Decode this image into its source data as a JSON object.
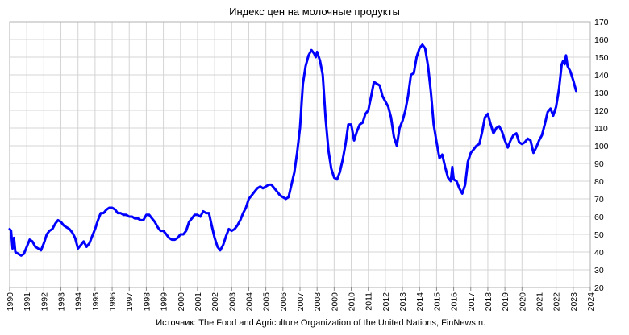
{
  "chart_data": {
    "type": "line",
    "title": "Индекс цен на молочные продукты",
    "source": "Источник: The Food and Agriculture Organization of the United Nations, FinNews.ru",
    "xlabel": "",
    "ylabel": "",
    "xlim": [
      1990,
      2024
    ],
    "ylim": [
      20,
      170
    ],
    "y_axis_side": "right",
    "x_ticks": [
      "1990",
      "1991",
      "1992",
      "1993",
      "1994",
      "1995",
      "1996",
      "1997",
      "1998",
      "1999",
      "2000",
      "2001",
      "2002",
      "2003",
      "2004",
      "2005",
      "2006",
      "2007",
      "2008",
      "2009",
      "2010",
      "2011",
      "2012",
      "2013",
      "2014",
      "2015",
      "2016",
      "2017",
      "2018",
      "2019",
      "2020",
      "2021",
      "2022",
      "2023",
      "2024"
    ],
    "y_ticks": [
      "20",
      "30",
      "40",
      "50",
      "60",
      "70",
      "80",
      "90",
      "100",
      "110",
      "120",
      "130",
      "140",
      "150",
      "160",
      "170"
    ],
    "grid": {
      "horizontal": true,
      "vertical": true
    },
    "legend": "none",
    "series": [
      {
        "color": "#0000ff",
        "points": [
          [
            1990.0,
            53
          ],
          [
            1990.08,
            52
          ],
          [
            1990.17,
            42
          ],
          [
            1990.25,
            48
          ],
          [
            1990.33,
            40
          ],
          [
            1990.5,
            39
          ],
          [
            1990.67,
            38
          ],
          [
            1990.83,
            39
          ],
          [
            1991.0,
            43
          ],
          [
            1991.17,
            47
          ],
          [
            1991.33,
            46
          ],
          [
            1991.5,
            43
          ],
          [
            1991.67,
            42
          ],
          [
            1991.83,
            41
          ],
          [
            1992.0,
            45
          ],
          [
            1992.17,
            50
          ],
          [
            1992.33,
            52
          ],
          [
            1992.5,
            53
          ],
          [
            1992.67,
            56
          ],
          [
            1992.83,
            58
          ],
          [
            1993.0,
            57
          ],
          [
            1993.17,
            55
          ],
          [
            1993.33,
            54
          ],
          [
            1993.5,
            53
          ],
          [
            1993.67,
            51
          ],
          [
            1993.83,
            48
          ],
          [
            1994.0,
            42
          ],
          [
            1994.17,
            44
          ],
          [
            1994.33,
            46
          ],
          [
            1994.5,
            43
          ],
          [
            1994.67,
            45
          ],
          [
            1994.83,
            49
          ],
          [
            1995.0,
            53
          ],
          [
            1995.17,
            58
          ],
          [
            1995.33,
            62
          ],
          [
            1995.5,
            62
          ],
          [
            1995.67,
            64
          ],
          [
            1995.83,
            65
          ],
          [
            1996.0,
            65
          ],
          [
            1996.17,
            64
          ],
          [
            1996.33,
            62
          ],
          [
            1996.5,
            62
          ],
          [
            1996.67,
            61
          ],
          [
            1996.83,
            61
          ],
          [
            1997.0,
            60
          ],
          [
            1997.17,
            60
          ],
          [
            1997.33,
            59
          ],
          [
            1997.5,
            59
          ],
          [
            1997.67,
            58
          ],
          [
            1997.83,
            58
          ],
          [
            1998.0,
            61
          ],
          [
            1998.17,
            61
          ],
          [
            1998.33,
            59
          ],
          [
            1998.5,
            57
          ],
          [
            1998.67,
            54
          ],
          [
            1998.83,
            52
          ],
          [
            1999.0,
            52
          ],
          [
            1999.17,
            50
          ],
          [
            1999.33,
            48
          ],
          [
            1999.5,
            47
          ],
          [
            1999.67,
            47
          ],
          [
            1999.83,
            48
          ],
          [
            2000.0,
            50
          ],
          [
            2000.17,
            50
          ],
          [
            2000.33,
            52
          ],
          [
            2000.5,
            57
          ],
          [
            2000.67,
            59
          ],
          [
            2000.83,
            61
          ],
          [
            2001.0,
            61
          ],
          [
            2001.17,
            60
          ],
          [
            2001.33,
            63
          ],
          [
            2001.5,
            62
          ],
          [
            2001.67,
            62
          ],
          [
            2001.83,
            55
          ],
          [
            2002.0,
            48
          ],
          [
            2002.17,
            43
          ],
          [
            2002.33,
            41
          ],
          [
            2002.5,
            44
          ],
          [
            2002.67,
            49
          ],
          [
            2002.83,
            53
          ],
          [
            2003.0,
            52
          ],
          [
            2003.17,
            53
          ],
          [
            2003.33,
            55
          ],
          [
            2003.5,
            58
          ],
          [
            2003.67,
            62
          ],
          [
            2003.83,
            65
          ],
          [
            2004.0,
            70
          ],
          [
            2004.17,
            72
          ],
          [
            2004.33,
            74
          ],
          [
            2004.5,
            76
          ],
          [
            2004.67,
            77
          ],
          [
            2004.83,
            76
          ],
          [
            2005.0,
            77
          ],
          [
            2005.17,
            78
          ],
          [
            2005.33,
            78
          ],
          [
            2005.5,
            76
          ],
          [
            2005.67,
            74
          ],
          [
            2005.83,
            72
          ],
          [
            2006.0,
            71
          ],
          [
            2006.17,
            70
          ],
          [
            2006.33,
            71
          ],
          [
            2006.5,
            78
          ],
          [
            2006.67,
            85
          ],
          [
            2006.83,
            96
          ],
          [
            2007.0,
            110
          ],
          [
            2007.17,
            135
          ],
          [
            2007.33,
            145
          ],
          [
            2007.5,
            151
          ],
          [
            2007.67,
            154
          ],
          [
            2007.83,
            152
          ],
          [
            2007.92,
            150
          ],
          [
            2008.0,
            153
          ],
          [
            2008.17,
            148
          ],
          [
            2008.33,
            140
          ],
          [
            2008.5,
            115
          ],
          [
            2008.67,
            97
          ],
          [
            2008.83,
            87
          ],
          [
            2009.0,
            82
          ],
          [
            2009.17,
            81
          ],
          [
            2009.33,
            85
          ],
          [
            2009.5,
            92
          ],
          [
            2009.67,
            101
          ],
          [
            2009.83,
            112
          ],
          [
            2010.0,
            112
          ],
          [
            2010.17,
            103
          ],
          [
            2010.33,
            108
          ],
          [
            2010.5,
            112
          ],
          [
            2010.67,
            113
          ],
          [
            2010.83,
            118
          ],
          [
            2011.0,
            120
          ],
          [
            2011.17,
            128
          ],
          [
            2011.33,
            136
          ],
          [
            2011.5,
            135
          ],
          [
            2011.67,
            134
          ],
          [
            2011.83,
            128
          ],
          [
            2012.0,
            125
          ],
          [
            2012.17,
            122
          ],
          [
            2012.33,
            116
          ],
          [
            2012.5,
            105
          ],
          [
            2012.67,
            100
          ],
          [
            2012.83,
            110
          ],
          [
            2013.0,
            114
          ],
          [
            2013.17,
            120
          ],
          [
            2013.33,
            128
          ],
          [
            2013.5,
            140
          ],
          [
            2013.67,
            141
          ],
          [
            2013.83,
            150
          ],
          [
            2014.0,
            155
          ],
          [
            2014.17,
            157
          ],
          [
            2014.33,
            155
          ],
          [
            2014.5,
            145
          ],
          [
            2014.67,
            130
          ],
          [
            2014.83,
            112
          ],
          [
            2015.0,
            102
          ],
          [
            2015.17,
            93
          ],
          [
            2015.33,
            95
          ],
          [
            2015.5,
            88
          ],
          [
            2015.67,
            82
          ],
          [
            2015.83,
            80
          ],
          [
            2015.92,
            88
          ],
          [
            2016.0,
            81
          ],
          [
            2016.17,
            80
          ],
          [
            2016.33,
            76
          ],
          [
            2016.5,
            73
          ],
          [
            2016.67,
            78
          ],
          [
            2016.83,
            91
          ],
          [
            2017.0,
            96
          ],
          [
            2017.17,
            98
          ],
          [
            2017.33,
            100
          ],
          [
            2017.5,
            101
          ],
          [
            2017.67,
            108
          ],
          [
            2017.83,
            116
          ],
          [
            2018.0,
            118
          ],
          [
            2018.17,
            112
          ],
          [
            2018.33,
            107
          ],
          [
            2018.5,
            110
          ],
          [
            2018.67,
            111
          ],
          [
            2018.83,
            108
          ],
          [
            2019.0,
            103
          ],
          [
            2019.17,
            99
          ],
          [
            2019.33,
            103
          ],
          [
            2019.5,
            106
          ],
          [
            2019.67,
            107
          ],
          [
            2019.83,
            102
          ],
          [
            2020.0,
            101
          ],
          [
            2020.17,
            102
          ],
          [
            2020.33,
            104
          ],
          [
            2020.5,
            103
          ],
          [
            2020.67,
            96
          ],
          [
            2020.83,
            99
          ],
          [
            2021.0,
            103
          ],
          [
            2021.17,
            106
          ],
          [
            2021.33,
            112
          ],
          [
            2021.5,
            119
          ],
          [
            2021.67,
            121
          ],
          [
            2021.83,
            117
          ],
          [
            2022.0,
            122
          ],
          [
            2022.17,
            132
          ],
          [
            2022.33,
            146
          ],
          [
            2022.42,
            148
          ],
          [
            2022.5,
            146
          ],
          [
            2022.58,
            151
          ],
          [
            2022.67,
            145
          ],
          [
            2022.83,
            142
          ],
          [
            2023.0,
            137
          ],
          [
            2023.17,
            131
          ]
        ]
      }
    ]
  }
}
